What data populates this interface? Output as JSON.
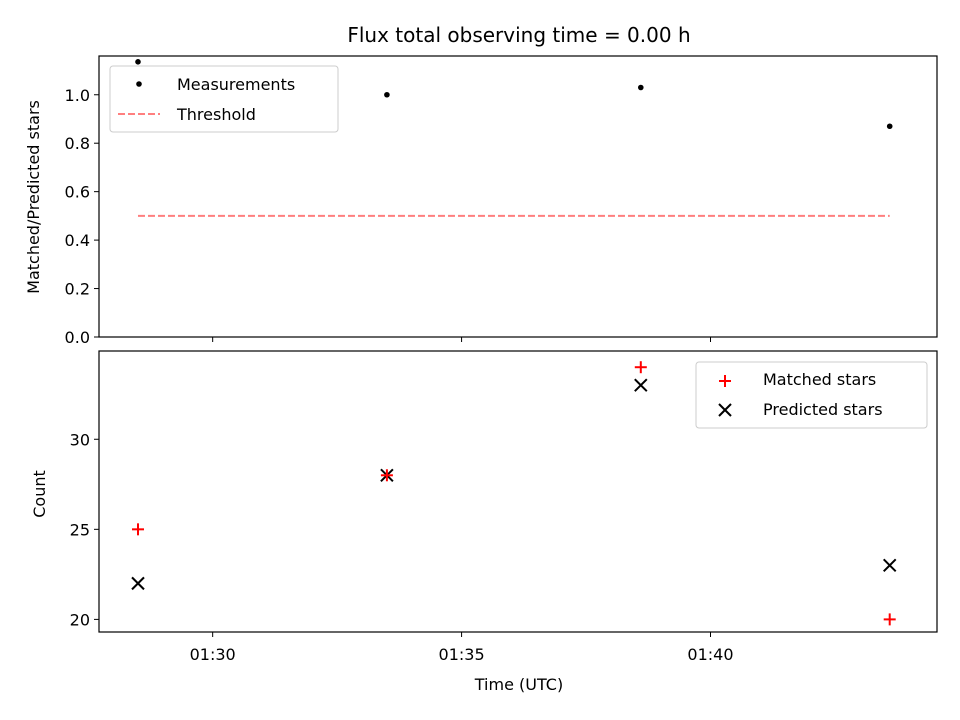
{
  "chart_data": [
    {
      "type": "scatter",
      "title": "Flux total observing time = 0.00 h",
      "xlabel": "",
      "ylabel": "Matched/Predicted stars",
      "ylim": [
        0,
        1.16
      ],
      "yticks": [
        "0.0",
        "0.2",
        "0.4",
        "0.6",
        "0.8",
        "1.0"
      ],
      "yticks_values": [
        0,
        0.2,
        0.4,
        0.6,
        0.8,
        1.0
      ],
      "series": [
        {
          "name": "Measurements",
          "style": "dot",
          "color": "#000000",
          "x": [
            "01:28:30",
            "01:33:30",
            "01:38:36",
            "01:43:36"
          ],
          "values": [
            1.136,
            1.0,
            1.03,
            0.87
          ]
        },
        {
          "name": "Threshold",
          "style": "dashed-line",
          "color": "#ff7f7f",
          "x": [
            "01:28:30",
            "01:43:36"
          ],
          "values": [
            0.5,
            0.5
          ]
        }
      ],
      "legend": "top-left"
    },
    {
      "type": "scatter",
      "xlabel": "Time (UTC)",
      "ylabel": "Count",
      "ylim": [
        19.3,
        34.9
      ],
      "yticks": [
        "20",
        "25",
        "30"
      ],
      "yticks_values": [
        20,
        25,
        30
      ],
      "xlim": [
        "01:27:43",
        "01:44:33"
      ],
      "xticks": [
        "01:30",
        "01:35",
        "01:40"
      ],
      "xticks_values": [
        "01:30:00",
        "01:35:00",
        "01:40:00"
      ],
      "series": [
        {
          "name": "Matched stars",
          "marker": "plus",
          "color": "#ff0000",
          "x": [
            "01:28:30",
            "01:33:30",
            "01:38:36",
            "01:43:36"
          ],
          "values": [
            25,
            28,
            34,
            20
          ]
        },
        {
          "name": "Predicted stars",
          "marker": "x",
          "color": "#000000",
          "x": [
            "01:28:30",
            "01:33:30",
            "01:38:36",
            "01:43:36"
          ],
          "values": [
            22,
            28,
            33,
            23
          ]
        }
      ],
      "legend": "top-right"
    }
  ]
}
